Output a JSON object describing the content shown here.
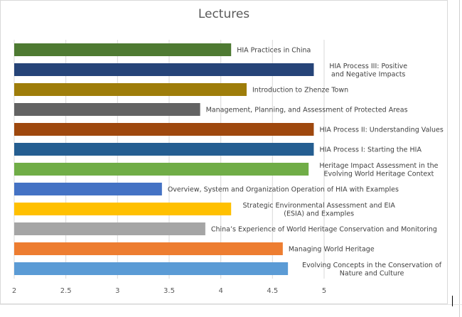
{
  "chart_data": {
    "type": "bar",
    "orientation": "horizontal",
    "title": "Lectures",
    "xlim": [
      2,
      5
    ],
    "xticks": [
      "2",
      "2.5",
      "3",
      "3.5",
      "4",
      "4.5",
      "5"
    ],
    "grid": true,
    "bars": [
      {
        "label": [
          "HIA Practices in China"
        ],
        "value": 4.1,
        "color": "#4e7a32"
      },
      {
        "label": [
          "HIA Process III: Positive",
          "and Negative Impacts"
        ],
        "value": 4.9,
        "color": "#264478"
      },
      {
        "label": [
          "Introduction to Zhenze Town"
        ],
        "value": 4.25,
        "color": "#9e7d0a"
      },
      {
        "label": [
          "Management, Planning, and Assessment of Protected Areas"
        ],
        "value": 3.8,
        "color": "#636363"
      },
      {
        "label": [
          "HIA Process II: Understanding Values"
        ],
        "value": 4.9,
        "color": "#9e480e"
      },
      {
        "label": [
          "HIA Process I: Starting the HIA"
        ],
        "value": 4.9,
        "color": "#255e91"
      },
      {
        "label": [
          "Heritage Impact Assessment in the",
          "Evolving World Heritage Context"
        ],
        "value": 4.85,
        "color": "#70ad47"
      },
      {
        "label": [
          "Overview, System and Organization Operation of HIA with Examples"
        ],
        "value": 3.43,
        "color": "#4472c4"
      },
      {
        "label": [
          "Strategic Environmental Assessment and EIA",
          "(ESIA) and Examples"
        ],
        "value": 4.1,
        "color": "#ffc000"
      },
      {
        "label": [
          "China’s Experience of World Heritage Conservation and Monitoring"
        ],
        "value": 3.85,
        "color": "#a5a5a5"
      },
      {
        "label": [
          "Managing World Heritage"
        ],
        "value": 4.6,
        "color": "#ed7d31"
      },
      {
        "label": [
          "Evolving Concepts in the Conservation of",
          "Nature and Culture"
        ],
        "value": 4.65,
        "color": "#5b9bd5"
      }
    ]
  }
}
